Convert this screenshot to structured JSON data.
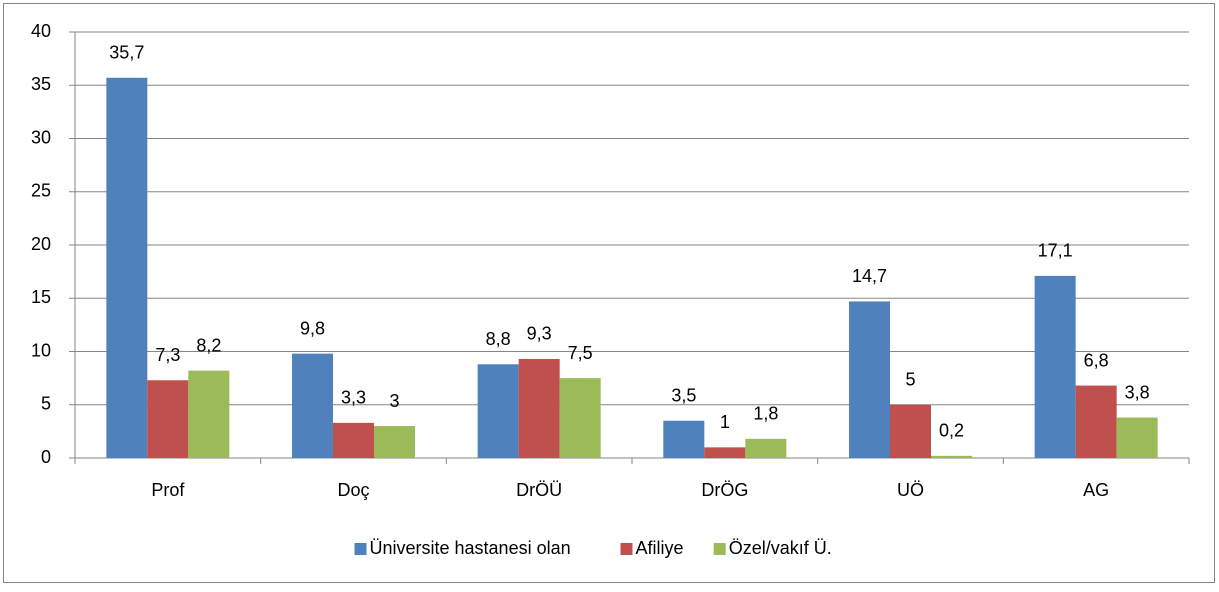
{
  "chart_data": {
    "type": "bar",
    "categories": [
      "Prof",
      "Doç",
      "DrÖÜ",
      "DrÖG",
      "UÖ",
      "AG"
    ],
    "series": [
      {
        "name": "Üniversite hastanesi olan",
        "color": "#4f81bd",
        "values": [
          35.7,
          9.8,
          8.8,
          3.5,
          14.7,
          17.1
        ],
        "value_labels": [
          "35,7",
          "9,8",
          "8,8",
          "3,5",
          "14,7",
          "17,1"
        ]
      },
      {
        "name": "Afiliye",
        "color": "#c0504d",
        "values": [
          7.3,
          3.3,
          9.3,
          1,
          5,
          6.8
        ],
        "value_labels": [
          "7,3",
          "3,3",
          "9,3",
          "1",
          "5",
          "6,8"
        ]
      },
      {
        "name": "Özel/vakıf Ü.",
        "color": "#9bbb59",
        "values": [
          8.2,
          3,
          7.5,
          1.8,
          0.2,
          3.8
        ],
        "value_labels": [
          "8,2",
          "3",
          "7,5",
          "1,8",
          "0,2",
          "3,8"
        ]
      }
    ],
    "ylim": [
      0,
      40
    ],
    "yticks": [
      0,
      5,
      10,
      15,
      20,
      25,
      30,
      35,
      40
    ],
    "grid": true,
    "legend": "bottom"
  }
}
